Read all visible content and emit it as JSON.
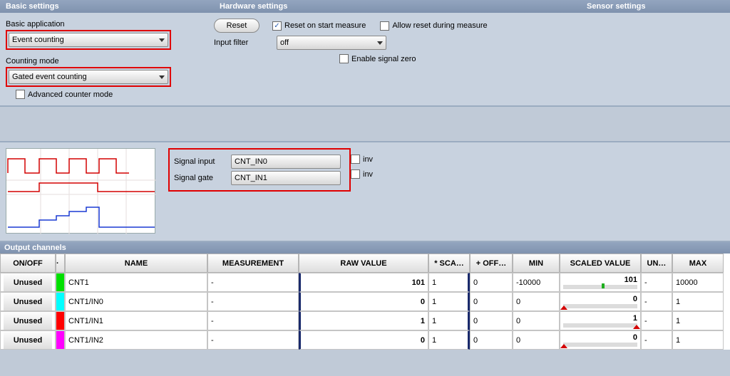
{
  "headers": {
    "basic": "Basic settings",
    "hardware": "Hardware settings",
    "sensor": "Sensor settings",
    "output": "Output channels"
  },
  "basic": {
    "app_label": "Basic application",
    "app_value": "Event counting",
    "mode_label": "Counting mode",
    "mode_value": "Gated event counting",
    "adv_label": "Advanced counter mode"
  },
  "hardware": {
    "reset_btn": "Reset",
    "reset_start": "Reset on start measure",
    "allow_reset": "Allow reset during measure",
    "filter_label": "Input filter",
    "filter_value": "off",
    "enable_zero": "Enable signal zero"
  },
  "signals": {
    "input_label": "Signal input",
    "input_value": "CNT_IN0",
    "gate_label": "Signal gate",
    "gate_value": "CNT_IN1",
    "inv": "inv"
  },
  "grid": {
    "columns": {
      "onoff": "ON/OFF",
      "blank": "·",
      "name": "NAME",
      "meas": "MEASUREMENT",
      "raw": "RAW VALUE",
      "sca": "* SCA…",
      "off": "+ OFF…",
      "min": "MIN",
      "sv": "SCALED VALUE",
      "un": "UN…",
      "max": "MAX"
    },
    "rows": [
      {
        "onoff": "Unused",
        "color": "#00e000",
        "name": "CNT1",
        "meas": "-",
        "raw": "101",
        "sca": "1",
        "off": "0",
        "min": "-10000",
        "sv": "101",
        "sv_marker": "green",
        "un": "-",
        "max": "10000"
      },
      {
        "onoff": "Unused",
        "color": "#00ffff",
        "name": "CNT1/IN0",
        "meas": "-",
        "raw": "0",
        "sca": "1",
        "off": "0",
        "min": "0",
        "sv": "0",
        "sv_marker": "red",
        "un": "-",
        "max": "1"
      },
      {
        "onoff": "Unused",
        "color": "#ff0000",
        "name": "CNT1/IN1",
        "meas": "-",
        "raw": "1",
        "sca": "1",
        "off": "0",
        "min": "0",
        "sv": "1",
        "sv_marker": "red",
        "un": "-",
        "max": "1"
      },
      {
        "onoff": "Unused",
        "color": "#ff00ff",
        "name": "CNT1/IN2",
        "meas": "-",
        "raw": "0",
        "sca": "1",
        "off": "0",
        "min": "0",
        "sv": "0",
        "sv_marker": "red",
        "un": "-",
        "max": "1"
      }
    ]
  },
  "waveform": {
    "bg": "#ffffff",
    "line1_color": "#d40000",
    "line2_color": "#d40000",
    "line3_color": "#1a3ad4",
    "grid_color": "#e6dede"
  }
}
